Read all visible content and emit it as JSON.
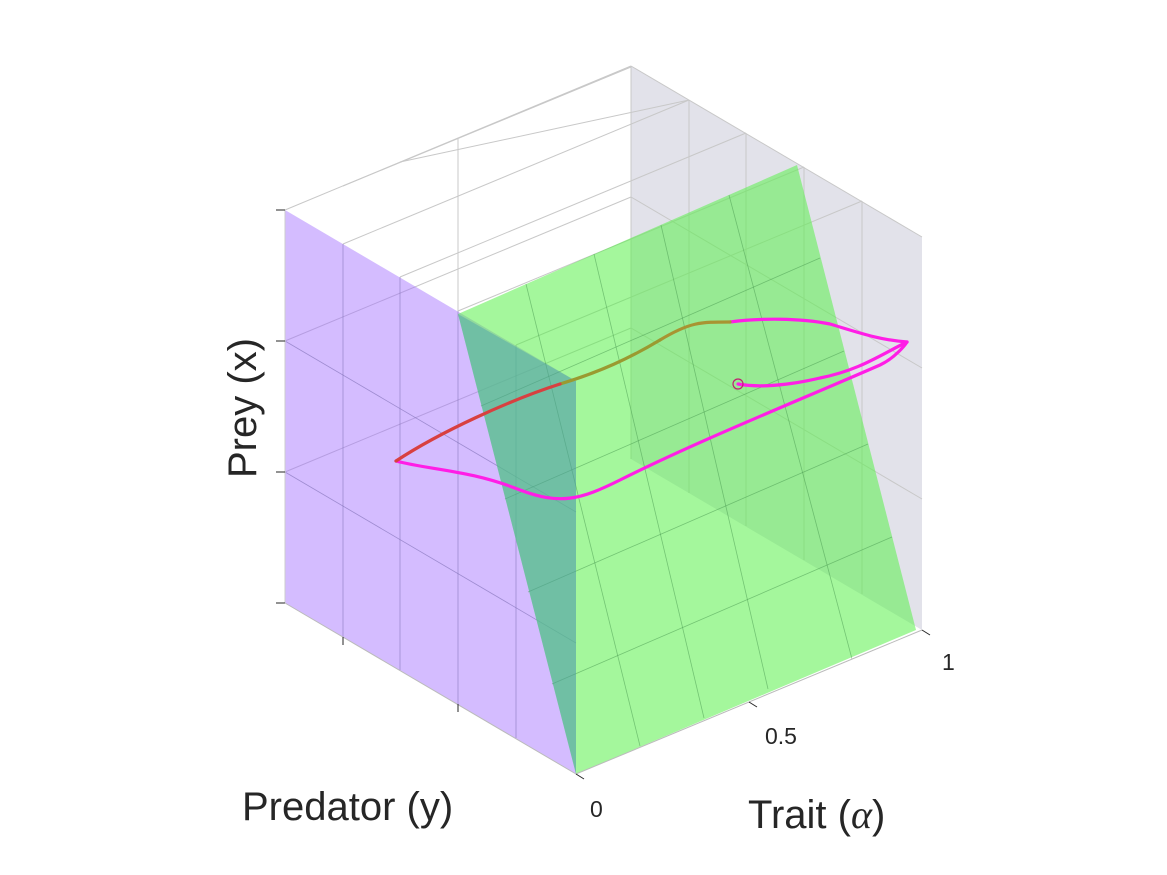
{
  "chart_data": {
    "type": "line3d",
    "axes": {
      "x_label": "Trait (",
      "x_label_symbol": "α",
      "x_label_close": ")",
      "y_label": "Predator (y)",
      "z_label": "Prey (x)",
      "x_ticks": [
        "0",
        "0.5",
        "1"
      ],
      "xlim": [
        0,
        1
      ]
    },
    "surfaces": [
      {
        "name": "",
        "color": "#9f6bff",
        "description": ""
      },
      {
        "name": "",
        "color": "#5af04a",
        "description": ""
      }
    ],
    "trajectory": {
      "start_marker": "circle",
      "colors": {
        "main": "#ff1ee6",
        "alt_1": "#d84040",
        "alt_2": "#9a9a30"
      }
    },
    "colors": {
      "back_wall": "#e2e2ea",
      "grid": "#c4c4c4",
      "axis_line": "#262626"
    }
  }
}
